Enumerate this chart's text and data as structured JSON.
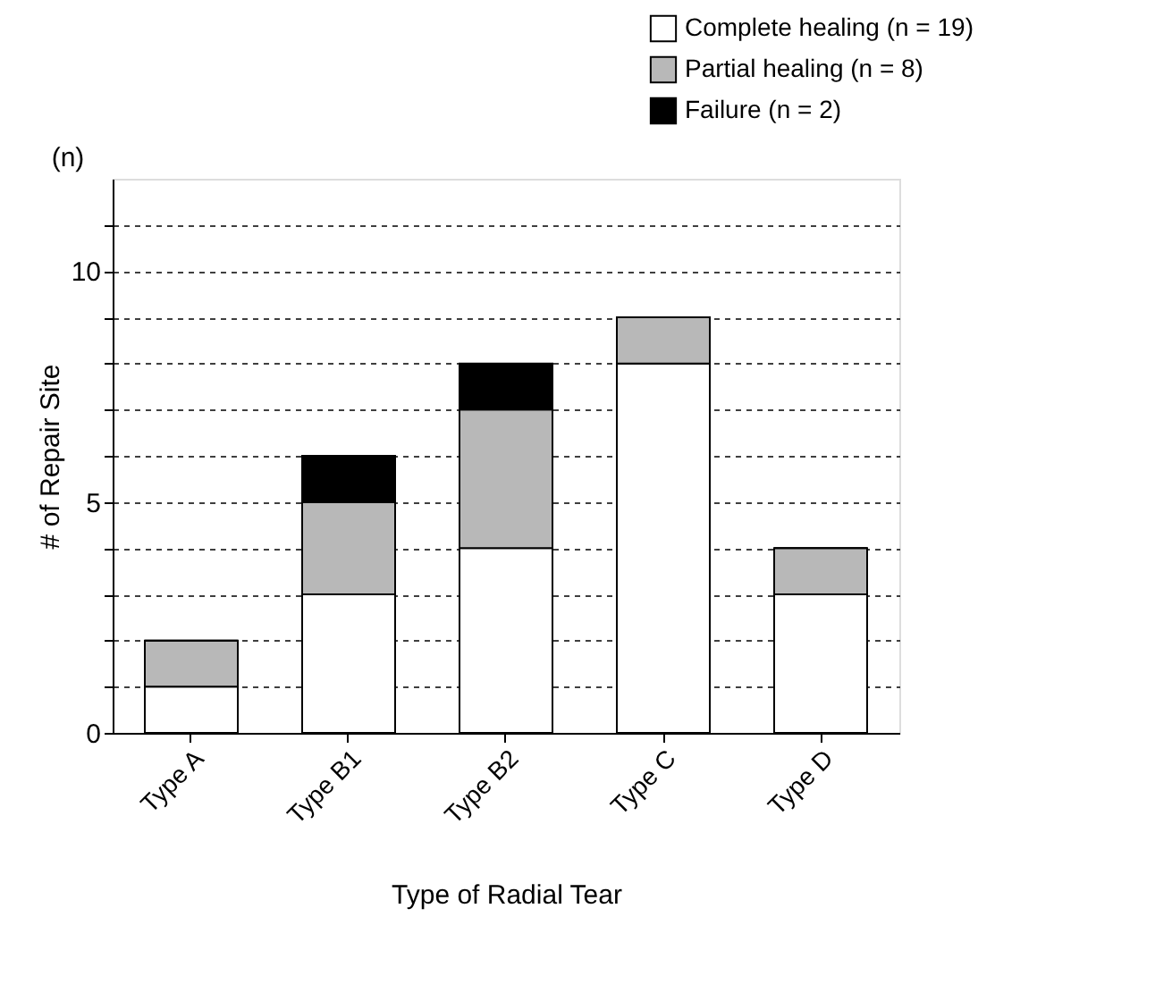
{
  "chart_data": {
    "type": "bar",
    "stacked": true,
    "xlabel": "Type of Radial Tear",
    "ylabel": "# of Repair Site",
    "annotations": [
      "(n)"
    ],
    "categories": [
      "Type A",
      "Type B1",
      "Type B2",
      "Type C",
      "Type D"
    ],
    "series": [
      {
        "name": "Complete healing (n = 19)",
        "color": "#ffffff",
        "values": [
          1,
          3,
          4,
          8,
          3
        ]
      },
      {
        "name": "Partial healing (n = 8)",
        "color": "#b8b8b8",
        "values": [
          1,
          2,
          3,
          1,
          1
        ]
      },
      {
        "name": "Failure (n = 2)",
        "color": "#000000",
        "values": [
          0,
          1,
          1,
          0,
          0
        ]
      }
    ],
    "ylim": [
      0,
      12
    ],
    "yticks": [
      0,
      {
        "value": 1,
        "label": null
      },
      {
        "value": 2,
        "label": null
      },
      {
        "value": 3,
        "label": null
      },
      {
        "value": 4,
        "label": null
      },
      5,
      {
        "value": 6,
        "label": null
      },
      {
        "value": 7,
        "label": null
      },
      {
        "value": 8,
        "label": null
      },
      {
        "value": 9,
        "label": null
      },
      10,
      {
        "value": 11,
        "label": null
      }
    ],
    "grid": "y",
    "legend": "top right"
  }
}
